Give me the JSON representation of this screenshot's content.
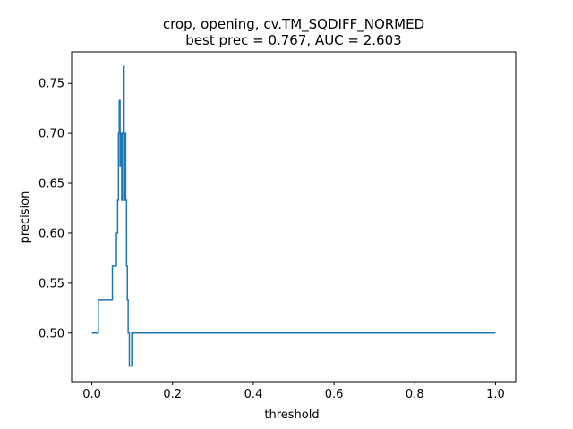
{
  "chart_data": {
    "type": "line",
    "title": [
      "crop, opening, cv.TM_SQDIFF_NORMED",
      "best prec = 0.767, AUC = 2.603"
    ],
    "xlabel": "threshold",
    "ylabel": "precision",
    "xlim": [
      -0.05,
      1.05
    ],
    "ylim": [
      0.4515,
      0.7815
    ],
    "xticks": [
      0.0,
      0.2,
      0.4,
      0.6,
      0.8,
      1.0
    ],
    "xtick_labels": [
      "0.0",
      "0.2",
      "0.4",
      "0.6",
      "0.8",
      "1.0"
    ],
    "yticks": [
      0.5,
      0.55,
      0.6,
      0.65,
      0.7,
      0.75
    ],
    "ytick_labels": [
      "0.50",
      "0.55",
      "0.60",
      "0.65",
      "0.70",
      "0.75"
    ],
    "grid": false,
    "series": [
      {
        "color": "#1f77b4",
        "step": true,
        "x": [
          0.0,
          0.016,
          0.016,
          0.051,
          0.051,
          0.061,
          0.061,
          0.064,
          0.064,
          0.066,
          0.066,
          0.068,
          0.068,
          0.07,
          0.07,
          0.072,
          0.072,
          0.074,
          0.074,
          0.076,
          0.076,
          0.078,
          0.078,
          0.08,
          0.08,
          0.082,
          0.082,
          0.084,
          0.084,
          0.086,
          0.086,
          0.088,
          0.088,
          0.09,
          0.09,
          0.093,
          0.093,
          0.096,
          0.096,
          0.099,
          0.099,
          0.102,
          0.102,
          1.0
        ],
        "y": [
          0.5,
          0.5,
          0.533,
          0.533,
          0.567,
          0.567,
          0.6,
          0.6,
          0.633,
          0.633,
          0.7,
          0.7,
          0.733,
          0.733,
          0.667,
          0.667,
          0.7,
          0.7,
          0.633,
          0.633,
          0.7,
          0.7,
          0.767,
          0.767,
          0.633,
          0.633,
          0.7,
          0.7,
          0.633,
          0.633,
          0.567,
          0.567,
          0.533,
          0.533,
          0.5,
          0.5,
          0.467,
          0.467,
          0.467,
          0.467,
          0.5,
          0.5,
          0.5,
          0.5
        ]
      }
    ]
  }
}
